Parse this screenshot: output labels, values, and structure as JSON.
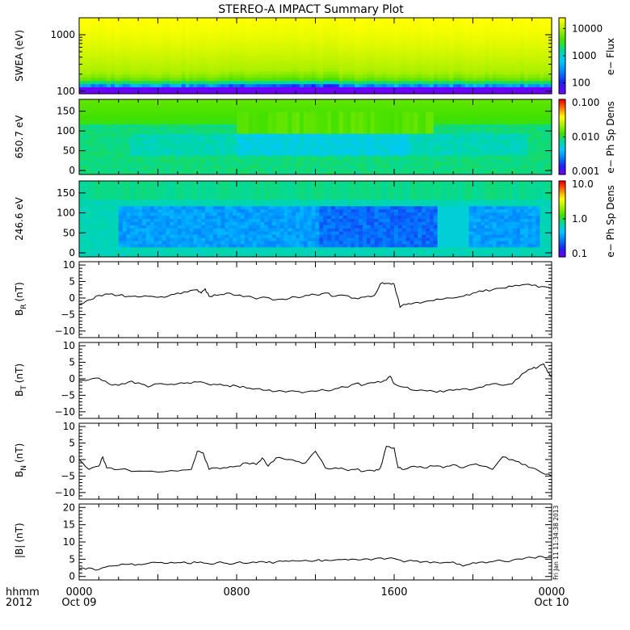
{
  "title": "STEREO-A IMPACT Summary Plot",
  "footer": {
    "row1": "hhmm",
    "row2": "2012",
    "xticks": [
      "0000",
      "0800",
      "1600",
      "0000"
    ],
    "xdates": [
      "Oct 09",
      "",
      "",
      "Oct 10"
    ]
  },
  "timestamp": "Fri Jan 11 11:34:38 2013",
  "colors": {
    "line": "#000000",
    "background": "#ffffff"
  },
  "chart_data": [
    {
      "id": "swea",
      "type": "heatmap",
      "ylabel": "SWEA (eV)",
      "yscale": "log",
      "ylim": [
        90,
        2000
      ],
      "yticks": [
        {
          "v": 100,
          "t": "100"
        },
        {
          "v": 1000,
          "t": "1000"
        }
      ],
      "colorbar": {
        "label": "e− Flux",
        "scale": "log",
        "range": [
          40,
          25000
        ],
        "ticks": [
          {
            "v": 100,
            "t": "100"
          },
          {
            "v": 1000,
            "t": "1000"
          },
          {
            "v": 10000,
            "t": "10000"
          }
        ]
      },
      "colors": [
        "#ffff00",
        "#a8f000",
        "#40e000",
        "#00d8a0",
        "#00c8ff",
        "#0080ff",
        "#2020f0",
        "#7000ff"
      ],
      "color_levels": [
        0,
        0.55,
        0.72,
        0.8,
        0.86,
        0.9,
        0.94,
        1.0
      ]
    },
    {
      "id": "pa650",
      "type": "heatmap",
      "ylabel": "650.7 eV",
      "yscale": "linear",
      "ylim": [
        -10,
        180
      ],
      "yticks": [
        {
          "v": 0,
          "t": "0"
        },
        {
          "v": 50,
          "t": "50"
        },
        {
          "v": 100,
          "t": "100"
        },
        {
          "v": 150,
          "t": "150"
        }
      ],
      "colorbar": {
        "label": "e− Ph Sp Dens",
        "scale": "log",
        "range": [
          0.001,
          0.1
        ],
        "ticks": [
          {
            "v": 0.001,
            "t": "0.001"
          },
          {
            "v": 0.01,
            "t": "0.010"
          },
          {
            "v": 0.1,
            "t": "0.100"
          }
        ]
      },
      "colors": [
        "#7000ff",
        "#2020f0",
        "#0080ff",
        "#00c8ff",
        "#00d8a0",
        "#40e000",
        "#a8f000",
        "#ffff00",
        "#ff8000",
        "#ff0000"
      ]
    },
    {
      "id": "pa246",
      "type": "heatmap",
      "ylabel": "246.6 eV",
      "yscale": "linear",
      "ylim": [
        -10,
        180
      ],
      "yticks": [
        {
          "v": 0,
          "t": "0"
        },
        {
          "v": 50,
          "t": "50"
        },
        {
          "v": 100,
          "t": "100"
        },
        {
          "v": 150,
          "t": "150"
        }
      ],
      "colorbar": {
        "label": "e− Ph Sp Dens",
        "scale": "log",
        "range": [
          0.1,
          10
        ],
        "ticks": [
          {
            "v": 0.1,
            "t": "0.1"
          },
          {
            "v": 1,
            "t": "1.0"
          },
          {
            "v": 10,
            "t": "10.0"
          }
        ]
      },
      "colors": [
        "#7000ff",
        "#2020f0",
        "#0080ff",
        "#00c8ff",
        "#00d8a0",
        "#40e000",
        "#a8f000",
        "#ffff00",
        "#ff8000",
        "#ff0000"
      ]
    },
    {
      "id": "br",
      "type": "line",
      "ylabel": "B",
      "ysub": "R",
      "yunit": "(nT)",
      "ylim": [
        -12,
        11
      ],
      "yticks": [
        {
          "v": -10,
          "t": "−10"
        },
        {
          "v": -5,
          "t": "−5"
        },
        {
          "v": 0,
          "t": "0"
        },
        {
          "v": 5,
          "t": "5"
        },
        {
          "v": 10,
          "t": "10"
        }
      ],
      "x": [
        0,
        0.3,
        0.6,
        1,
        1.5,
        2,
        2.5,
        3,
        3.5,
        4,
        4.5,
        5,
        5.5,
        6,
        6.2,
        6.4,
        6.6,
        7,
        7.5,
        8,
        8.5,
        9,
        9.5,
        10,
        10.5,
        11,
        11.5,
        12,
        12.5,
        13,
        13.5,
        14,
        14.5,
        15,
        15.3,
        15.6,
        15.8,
        16,
        16.3,
        16.6,
        17,
        17.5,
        18,
        18.5,
        19,
        19.5,
        20,
        20.5,
        21,
        21.5,
        22,
        22.5,
        23,
        23.5,
        24
      ],
      "y": [
        -2,
        -1.2,
        -0.5,
        0.8,
        1.2,
        0.8,
        0.5,
        0.3,
        0.5,
        0.2,
        0.5,
        1.5,
        1.8,
        2.5,
        1.5,
        2.8,
        0.5,
        0.8,
        1.5,
        0.8,
        0.5,
        -0.3,
        0.2,
        -0.5,
        -0.5,
        0.3,
        0.8,
        1,
        1.5,
        0.5,
        0.8,
        0,
        0.3,
        0.8,
        4.3,
        4.5,
        4.3,
        4.2,
        -2.8,
        -2,
        -1.5,
        -1.2,
        -0.8,
        -0.3,
        0,
        0.5,
        1.5,
        2,
        2.5,
        3,
        3.5,
        4,
        3.8,
        3.5,
        3
      ]
    },
    {
      "id": "bt",
      "type": "line",
      "ylabel": "B",
      "ysub": "T",
      "yunit": "(nT)",
      "ylim": [
        -12,
        11
      ],
      "yticks": [
        {
          "v": -10,
          "t": "−10"
        },
        {
          "v": -5,
          "t": "−5"
        },
        {
          "v": 0,
          "t": "0"
        },
        {
          "v": 5,
          "t": "5"
        },
        {
          "v": 10,
          "t": "10"
        }
      ],
      "x": [
        0,
        0.5,
        1,
        1.5,
        2,
        2.5,
        3,
        3.5,
        4,
        4.5,
        5,
        5.5,
        6,
        6.5,
        7,
        7.5,
        8,
        8.5,
        9,
        9.5,
        10,
        10.5,
        11,
        11.5,
        12,
        12.5,
        13,
        13.5,
        14,
        14.5,
        15,
        15.5,
        15.8,
        16,
        16.5,
        17,
        17.5,
        18,
        18.5,
        19,
        19.5,
        20,
        20.5,
        21,
        21.5,
        22,
        22.5,
        23,
        23.3,
        23.6,
        23.8,
        24
      ],
      "y": [
        -0.5,
        -0.3,
        0.2,
        -1.5,
        -2,
        -1,
        -1.2,
        -2.5,
        -1.5,
        -1.8,
        -1.5,
        -1.2,
        -1,
        -1.5,
        -1.8,
        -2,
        -2.2,
        -2.8,
        -3,
        -3.5,
        -3.8,
        -4,
        -3.8,
        -4,
        -3.8,
        -3.5,
        -3,
        -2.5,
        -1.5,
        -1.8,
        -1.2,
        -0.5,
        0.8,
        -1.5,
        -2.5,
        -3.5,
        -3.5,
        -3.8,
        -4,
        -3.5,
        -3,
        -3.2,
        -2.5,
        -1.5,
        -2,
        -1.5,
        1.5,
        3,
        3.5,
        4.5,
        2,
        0.5
      ]
    },
    {
      "id": "bn",
      "type": "line",
      "ylabel": "B",
      "ysub": "N",
      "yunit": "(nT)",
      "ylim": [
        -12,
        11
      ],
      "yticks": [
        {
          "v": -10,
          "t": "−10"
        },
        {
          "v": -5,
          "t": "−5"
        },
        {
          "v": 0,
          "t": "0"
        },
        {
          "v": 5,
          "t": "5"
        },
        {
          "v": 10,
          "t": "10"
        }
      ],
      "x": [
        0,
        0.5,
        1,
        1.2,
        1.4,
        2,
        3,
        4,
        5,
        5.7,
        6,
        6.3,
        6.6,
        7,
        7.5,
        8,
        8.5,
        9,
        9.3,
        9.6,
        10,
        10.5,
        11,
        11.5,
        12,
        12.5,
        13,
        13.5,
        14,
        14.5,
        15,
        15.3,
        15.6,
        16,
        16.2,
        16.5,
        17,
        17.5,
        18,
        18.5,
        19,
        19.5,
        20,
        20.5,
        21,
        21.5,
        22,
        22.5,
        23,
        23.5,
        24
      ],
      "y": [
        0,
        -3,
        -2,
        0.8,
        -2.5,
        -3,
        -3.5,
        -3.8,
        -3.5,
        -3,
        2.5,
        2,
        -3,
        -2.5,
        -2.5,
        -2,
        -1,
        -1.5,
        0.5,
        -2,
        0.5,
        0,
        -0.5,
        -1,
        2.5,
        -2.5,
        -2.5,
        -3,
        -3,
        -3.5,
        -3.5,
        -2.5,
        4,
        3.5,
        -2.5,
        -3,
        -2,
        -2.5,
        -2,
        -2.5,
        -1.5,
        -2.5,
        -1.5,
        -2,
        -3,
        0.8,
        0,
        -1.5,
        -2.5,
        -4,
        -5
      ]
    },
    {
      "id": "bmag",
      "type": "line",
      "ylabel": "|B|",
      "yunit": "(nT)",
      "ylim": [
        -1,
        21
      ],
      "yticks": [
        {
          "v": 0,
          "t": "0"
        },
        {
          "v": 5,
          "t": "5"
        },
        {
          "v": 10,
          "t": "10"
        },
        {
          "v": 15,
          "t": "15"
        },
        {
          "v": 20,
          "t": "20"
        }
      ],
      "x": [
        0,
        0.5,
        1,
        1.5,
        2,
        2.5,
        3,
        3.5,
        4,
        4.5,
        5,
        5.5,
        6,
        6.5,
        7,
        7.5,
        8,
        8.5,
        9,
        9.5,
        10,
        10.5,
        11,
        11.5,
        12,
        12.5,
        13,
        13.5,
        14,
        14.5,
        15,
        15.5,
        16,
        16.5,
        17,
        17.5,
        18,
        18.5,
        19,
        19.5,
        20,
        20.5,
        21,
        21.5,
        22,
        22.5,
        23,
        23.5,
        24
      ],
      "y": [
        2.2,
        2.5,
        2,
        3,
        3.2,
        3.5,
        3.5,
        3.8,
        4,
        3.8,
        4,
        3.8,
        4,
        3.8,
        4,
        3.8,
        4,
        3.8,
        4,
        4,
        4.2,
        4.5,
        4.5,
        4.7,
        4.6,
        4.8,
        4.8,
        5,
        5,
        5.1,
        5.1,
        5,
        5.2,
        4.2,
        4.5,
        4.3,
        4.2,
        4,
        4.2,
        3,
        4,
        4.2,
        4.3,
        4.5,
        4.7,
        5,
        5.5,
        5.8,
        5.5
      ]
    }
  ]
}
